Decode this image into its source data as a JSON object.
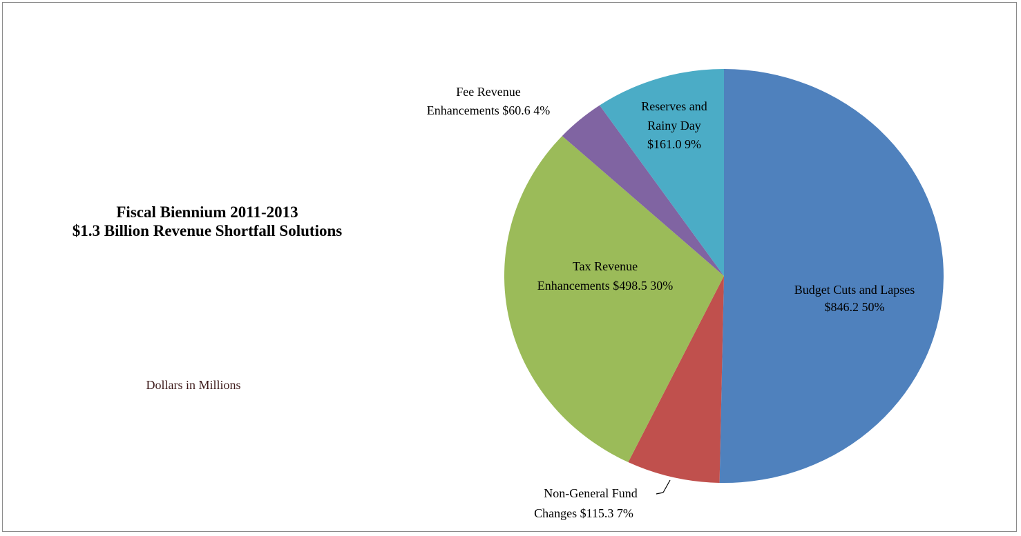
{
  "chart_data": {
    "type": "pie",
    "title": "Fiscal Biennium 2011-2013",
    "title2": "$1.3 Billion Revenue Shortfall Solutions",
    "subtitle": "Dollars in Millions",
    "slices": [
      {
        "line1": "Budget Cuts and Lapses",
        "line2": "$846.2  50%",
        "value": 846.2,
        "percent": 50,
        "color": "#4F81BD"
      },
      {
        "line1": "Non-General Fund",
        "line2": "Changes $115.3  7%",
        "value": 115.3,
        "percent": 7,
        "color": "#C0504D"
      },
      {
        "line1": "Tax Revenue",
        "line2": "Enhancements $498.5  30%",
        "value": 498.5,
        "percent": 30,
        "color": "#9BBB59"
      },
      {
        "line1": "Fee Revenue",
        "line2": "Enhancements $60.6  4%",
        "value": 60.6,
        "percent": 4,
        "color": "#8064A2"
      },
      {
        "line1": "Reserves and",
        "line2": "Rainy Day",
        "line3": "$161.0  9%",
        "value": 161.0,
        "percent": 9,
        "color": "#4BACC6"
      }
    ]
  }
}
